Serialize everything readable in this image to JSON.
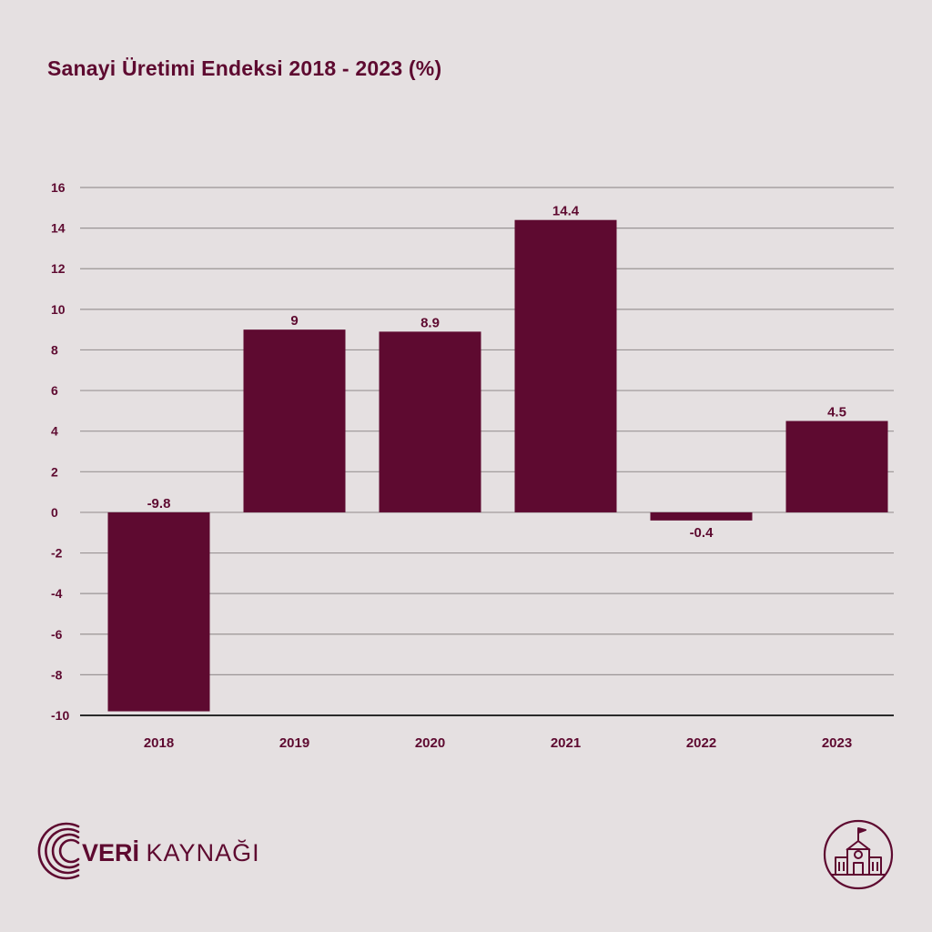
{
  "header": {
    "title": "Sanayi Üretimi Endeksi 2018 - 2023 (%)"
  },
  "brand": {
    "name_bold": "VERİ",
    "name_light": "KAYNAĞI"
  },
  "colors": {
    "bar": "#5e0a30",
    "background": "#e5e0e1",
    "grid": "#9a9495",
    "text": "#5e0a30"
  },
  "icons": {
    "brand_logo": "signal-arcs-icon",
    "badge": "school-building-icon"
  },
  "chart_data": {
    "type": "bar",
    "title": "Sanayi Üretimi Endeksi 2018 - 2023 (%)",
    "xlabel": "",
    "ylabel": "",
    "categories": [
      "2018",
      "2019",
      "2020",
      "2021",
      "2022",
      "2023"
    ],
    "values": [
      -9.8,
      9,
      8.9,
      14.4,
      -0.4,
      4.5
    ],
    "value_labels": [
      "-9.8",
      "9",
      "8.9",
      "14.4",
      "-0.4",
      "4.5"
    ],
    "ylim": [
      -10,
      16
    ],
    "yticks": [
      16,
      14,
      12,
      10,
      8,
      6,
      4,
      2,
      0,
      -2,
      -4,
      -6,
      -8,
      -10
    ],
    "grid": true,
    "legend": "none"
  }
}
